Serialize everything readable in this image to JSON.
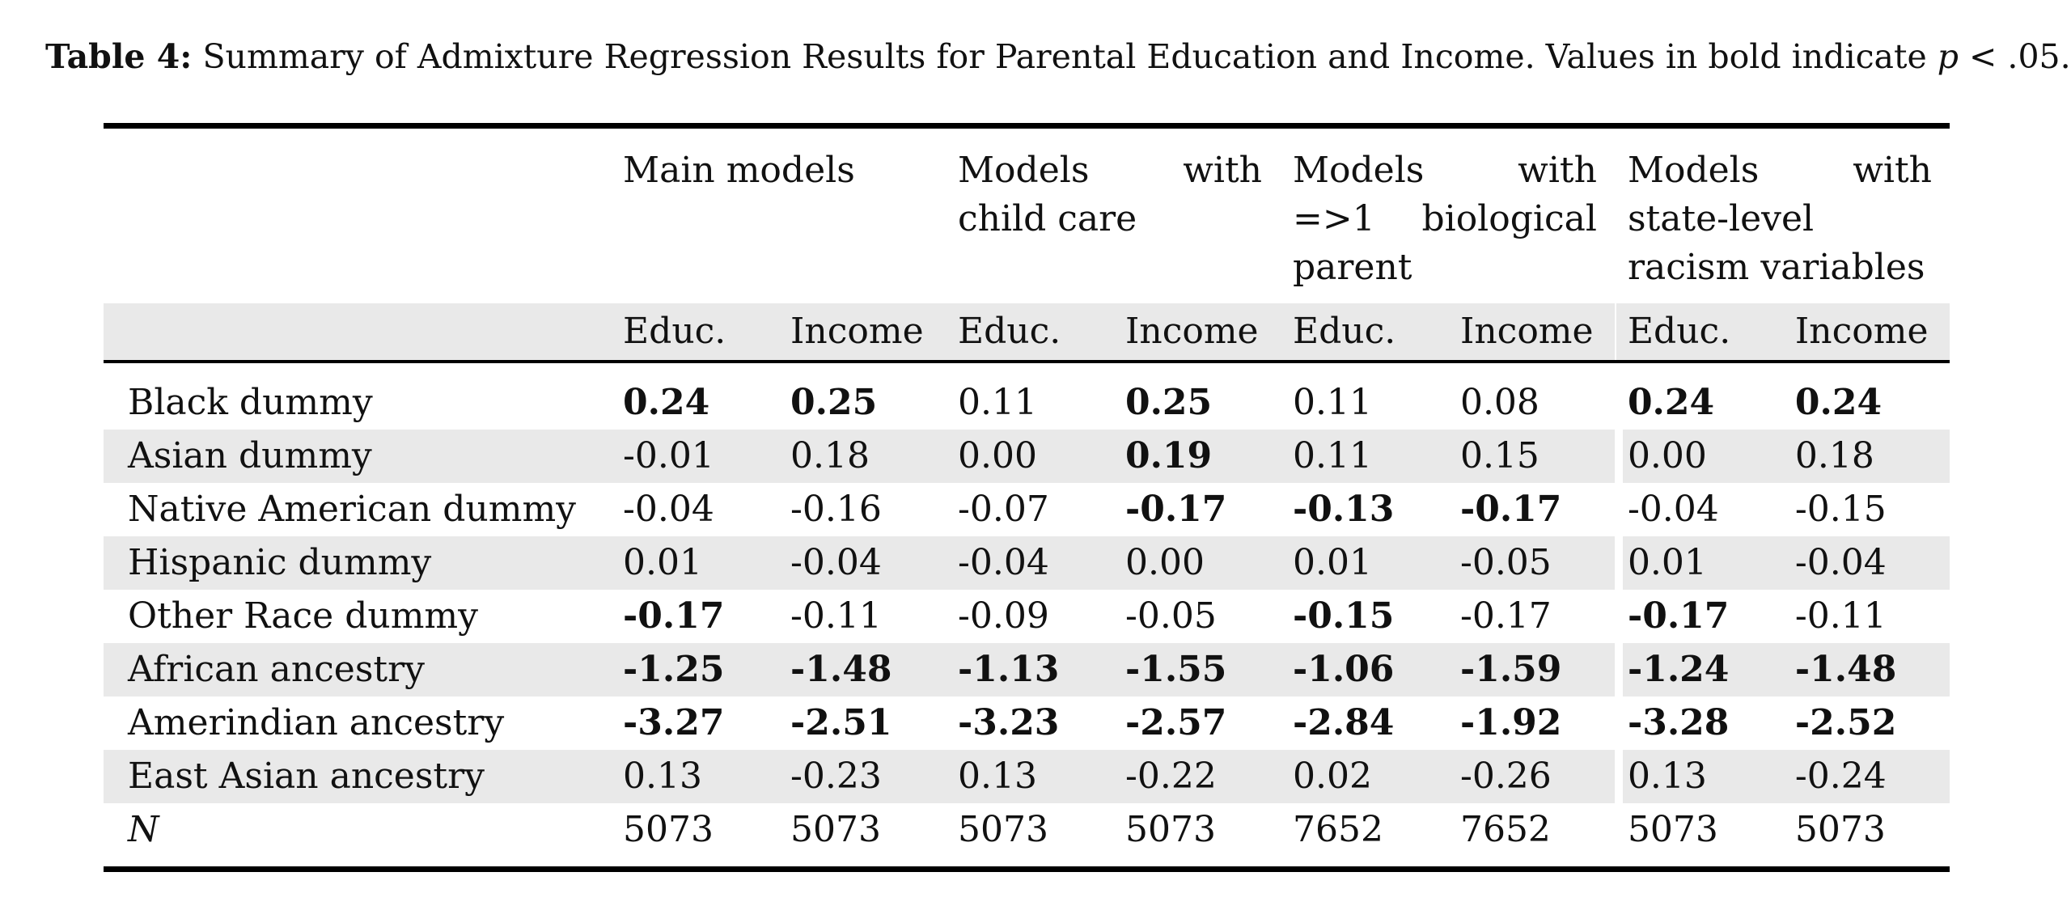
{
  "caption": {
    "label": "Table 4:",
    "text_before": " Summary of Admixture Regression Results for Parental Education and Income. Values in bold indicate ",
    "p_symbol": "p",
    "text_after": " < .05."
  },
  "header": {
    "groups": [
      "Main models",
      "Models with child care",
      "Models with =>1 biological parent",
      "Models with state-level racism variables"
    ],
    "subcolumns": [
      "Educ.",
      "Income",
      "Educ.",
      "Income",
      "Educ.",
      "Income",
      "Educ.",
      "Income"
    ]
  },
  "rows": [
    {
      "label": "Black dummy",
      "values": [
        "0.24",
        "0.25",
        "0.11",
        "0.25",
        "0.11",
        "0.08",
        "0.24",
        "0.24"
      ]
    },
    {
      "label": "Asian dummy",
      "values": [
        "-0.01",
        "0.18",
        "0.00",
        "0.19",
        "0.11",
        "0.15",
        "0.00",
        "0.18"
      ]
    },
    {
      "label": "Native American dummy",
      "values": [
        "-0.04",
        "-0.16",
        "-0.07",
        "-0.17",
        "-0.13",
        "-0.17",
        "-0.04",
        "-0.15"
      ]
    },
    {
      "label": "Hispanic dummy",
      "values": [
        "0.01",
        "-0.04",
        "-0.04",
        "0.00",
        "0.01",
        "-0.05",
        "0.01",
        "-0.04"
      ]
    },
    {
      "label": "Other Race dummy",
      "values": [
        "-0.17",
        "-0.11",
        "-0.09",
        "-0.05",
        "-0.15",
        "-0.17",
        "-0.17",
        "-0.11"
      ]
    },
    {
      "label": "African ancestry",
      "values": [
        "-1.25",
        "-1.48",
        "-1.13",
        "-1.55",
        "-1.06",
        "-1.59",
        "-1.24",
        "-1.48"
      ]
    },
    {
      "label": "Amerindian ancestry",
      "values": [
        "-3.27",
        "-2.51",
        "-3.23",
        "-2.57",
        "-2.84",
        "-1.92",
        "-3.28",
        "-2.52"
      ]
    },
    {
      "label": "East Asian ancestry",
      "values": [
        "0.13",
        "-0.23",
        "0.13",
        "-0.22",
        "0.02",
        "-0.26",
        "0.13",
        "-0.24"
      ]
    },
    {
      "label": "N",
      "values": [
        "5073",
        "5073",
        "5073",
        "5073",
        "7652",
        "7652",
        "5073",
        "5073"
      ]
    }
  ]
}
